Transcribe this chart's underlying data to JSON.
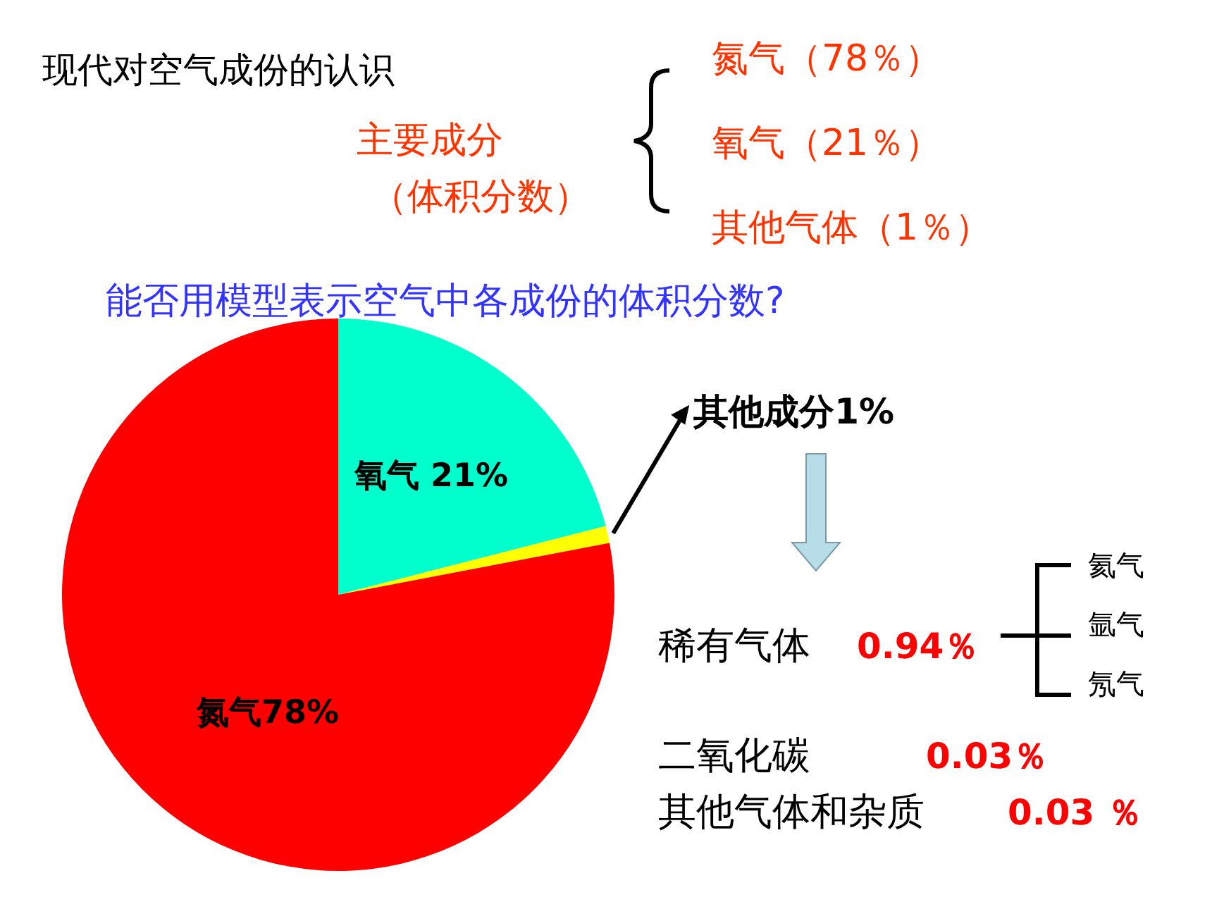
{
  "chart_data": {
    "type": "pie",
    "title": "现代对空气成份的认识",
    "subtitle": "能否用模型表示空气中各成份的体积分数?",
    "categories": [
      "氧气 21%",
      "其他成分1%",
      "氮气78%"
    ],
    "values": [
      21,
      1,
      78
    ],
    "colors": [
      "#00ffcc",
      "#ffff00",
      "#ff0000"
    ],
    "annotations": [
      "主要成分",
      "（体积分数）",
      "氮气（78％）",
      "氧气（21％）",
      "其他气体（1％）",
      "稀有气体",
      "0.94％",
      "氦气",
      "氩气",
      "氖气",
      "二氧化碳",
      "0.03％",
      "其他气体和杂质",
      "0.03 ％"
    ]
  }
}
